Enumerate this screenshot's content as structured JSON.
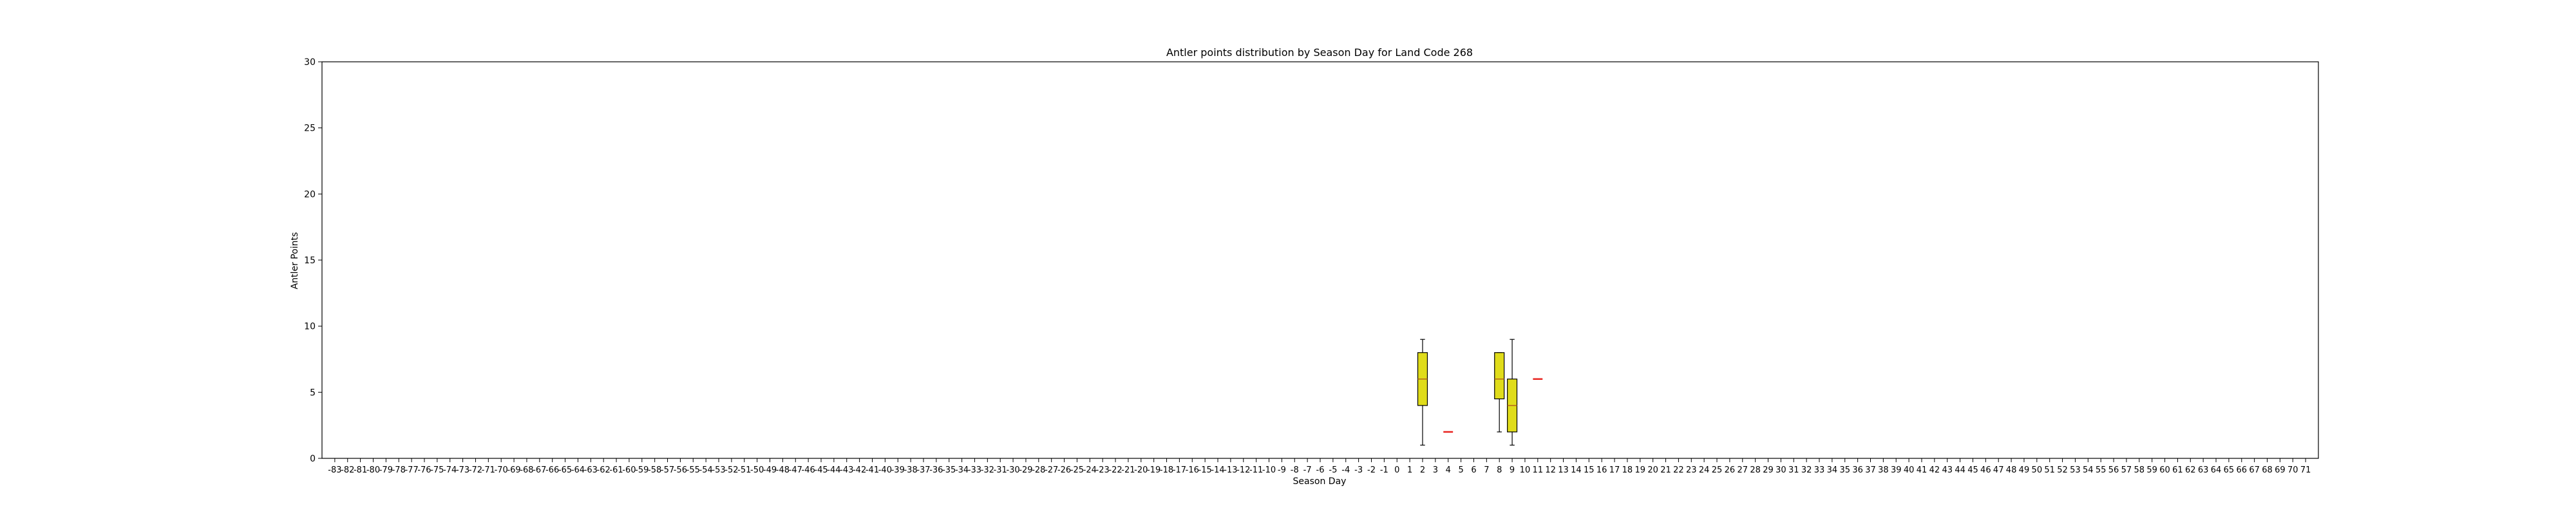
{
  "chart_data": {
    "type": "box",
    "title": "Antler points distribution by Season Day for Land Code 268",
    "xlabel": "Season Day",
    "ylabel": "Antler Points",
    "ylim": [
      0,
      30
    ],
    "yticks": [
      0,
      5,
      10,
      15,
      20,
      25,
      30
    ],
    "x_categories": [
      -83,
      -82,
      -81,
      -80,
      -79,
      -78,
      -77,
      -76,
      -75,
      -74,
      -73,
      -72,
      -71,
      -70,
      -69,
      -68,
      -67,
      -66,
      -65,
      -64,
      -63,
      -62,
      -61,
      -60,
      -59,
      -58,
      -57,
      -56,
      -55,
      -54,
      -53,
      -52,
      -51,
      -50,
      -49,
      -48,
      -47,
      -46,
      -45,
      -44,
      -43,
      -42,
      -41,
      -40,
      -39,
      -38,
      -37,
      -36,
      -35,
      -34,
      -33,
      -32,
      -31,
      -30,
      -29,
      -28,
      -27,
      -26,
      -25,
      -24,
      -23,
      -22,
      -21,
      -20,
      -19,
      -18,
      -17,
      -16,
      -15,
      -14,
      -13,
      -12,
      -11,
      -10,
      -9,
      -8,
      -7,
      -6,
      -5,
      -4,
      -3,
      -2,
      -1,
      0,
      1,
      2,
      3,
      4,
      5,
      6,
      7,
      8,
      9,
      10,
      11,
      12,
      13,
      14,
      15,
      16,
      17,
      18,
      19,
      20,
      21,
      22,
      23,
      24,
      25,
      26,
      27,
      28,
      29,
      30,
      31,
      32,
      33,
      34,
      35,
      36,
      37,
      38,
      39,
      40,
      41,
      42,
      43,
      44,
      45,
      46,
      47,
      48,
      49,
      50,
      51,
      52,
      53,
      54,
      55,
      56,
      57,
      58,
      59,
      60,
      61,
      62,
      63,
      64,
      65,
      66,
      67,
      68,
      69,
      70,
      71
    ],
    "box_fill": "#e0dc1a",
    "box_edge": "#000000",
    "median_color": "#b5651d",
    "single_value_color": "#e8231f",
    "grid": false,
    "boxes": [
      {
        "day": 2,
        "min": 1,
        "q1": 4,
        "median": 6,
        "q3": 8,
        "max": 9
      },
      {
        "day": 4,
        "min": 2,
        "q1": 2,
        "median": 2,
        "q3": 2,
        "max": 2
      },
      {
        "day": 8,
        "min": 2,
        "q1": 4.5,
        "median": 6,
        "q3": 8,
        "max": 8
      },
      {
        "day": 9,
        "min": 1,
        "q1": 2,
        "median": 4,
        "q3": 6,
        "max": 9
      },
      {
        "day": 11,
        "min": 6,
        "q1": 6,
        "median": 6,
        "q3": 6,
        "max": 6
      }
    ]
  }
}
